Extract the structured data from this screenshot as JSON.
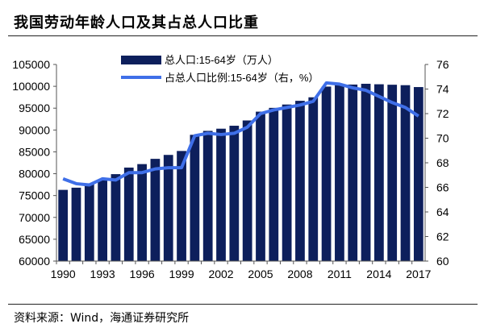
{
  "title": "我国劳动年龄人口及其占总人口比重",
  "source": "资料来源：Wind，海通证券研究所",
  "chart_data": {
    "type": "bar+line",
    "x": [
      1990,
      1991,
      1992,
      1993,
      1994,
      1995,
      1996,
      1997,
      1998,
      1999,
      2000,
      2001,
      2002,
      2003,
      2004,
      2005,
      2006,
      2007,
      2008,
      2009,
      2010,
      2011,
      2012,
      2013,
      2014,
      2015,
      2016,
      2017
    ],
    "x_tick_labels": [
      "1990",
      "1993",
      "1996",
      "1999",
      "2002",
      "2005",
      "2008",
      "2011",
      "2014",
      "2017"
    ],
    "left_axis": {
      "ylim": [
        60000,
        105000
      ],
      "ticks": [
        "60000",
        "65000",
        "70000",
        "75000",
        "80000",
        "85000",
        "90000",
        "95000",
        "100000",
        "105000"
      ]
    },
    "right_axis": {
      "ylim": [
        60,
        76
      ],
      "ticks": [
        "60",
        "62",
        "64",
        "66",
        "68",
        "70",
        "72",
        "74",
        "76"
      ]
    },
    "series": [
      {
        "name": "总人口:15-64岁（万人）",
        "type": "bar",
        "axis": "left",
        "color": "#0d1f5c",
        "values": [
          76300,
          76800,
          77600,
          78600,
          79900,
          81400,
          82200,
          83400,
          84300,
          85200,
          88900,
          89800,
          90300,
          90976,
          92184,
          94197,
          95068,
          95833,
          96680,
          97484,
          99938,
          100283,
          100403,
          100582,
          100469,
          100361,
          100260,
          99829
        ]
      },
      {
        "name": "占总人口比例:15-64岁（右，%）",
        "type": "line",
        "axis": "right",
        "color": "#3f6fe8",
        "values": [
          66.7,
          66.3,
          66.2,
          66.7,
          66.6,
          67.2,
          67.2,
          67.5,
          67.6,
          67.6,
          70.2,
          70.4,
          70.3,
          70.4,
          70.9,
          72.0,
          72.3,
          72.5,
          72.7,
          73.0,
          74.5,
          74.4,
          74.1,
          73.9,
          73.4,
          72.9,
          72.5,
          71.8
        ]
      }
    ],
    "legend_position": "top-center",
    "grid": false
  }
}
